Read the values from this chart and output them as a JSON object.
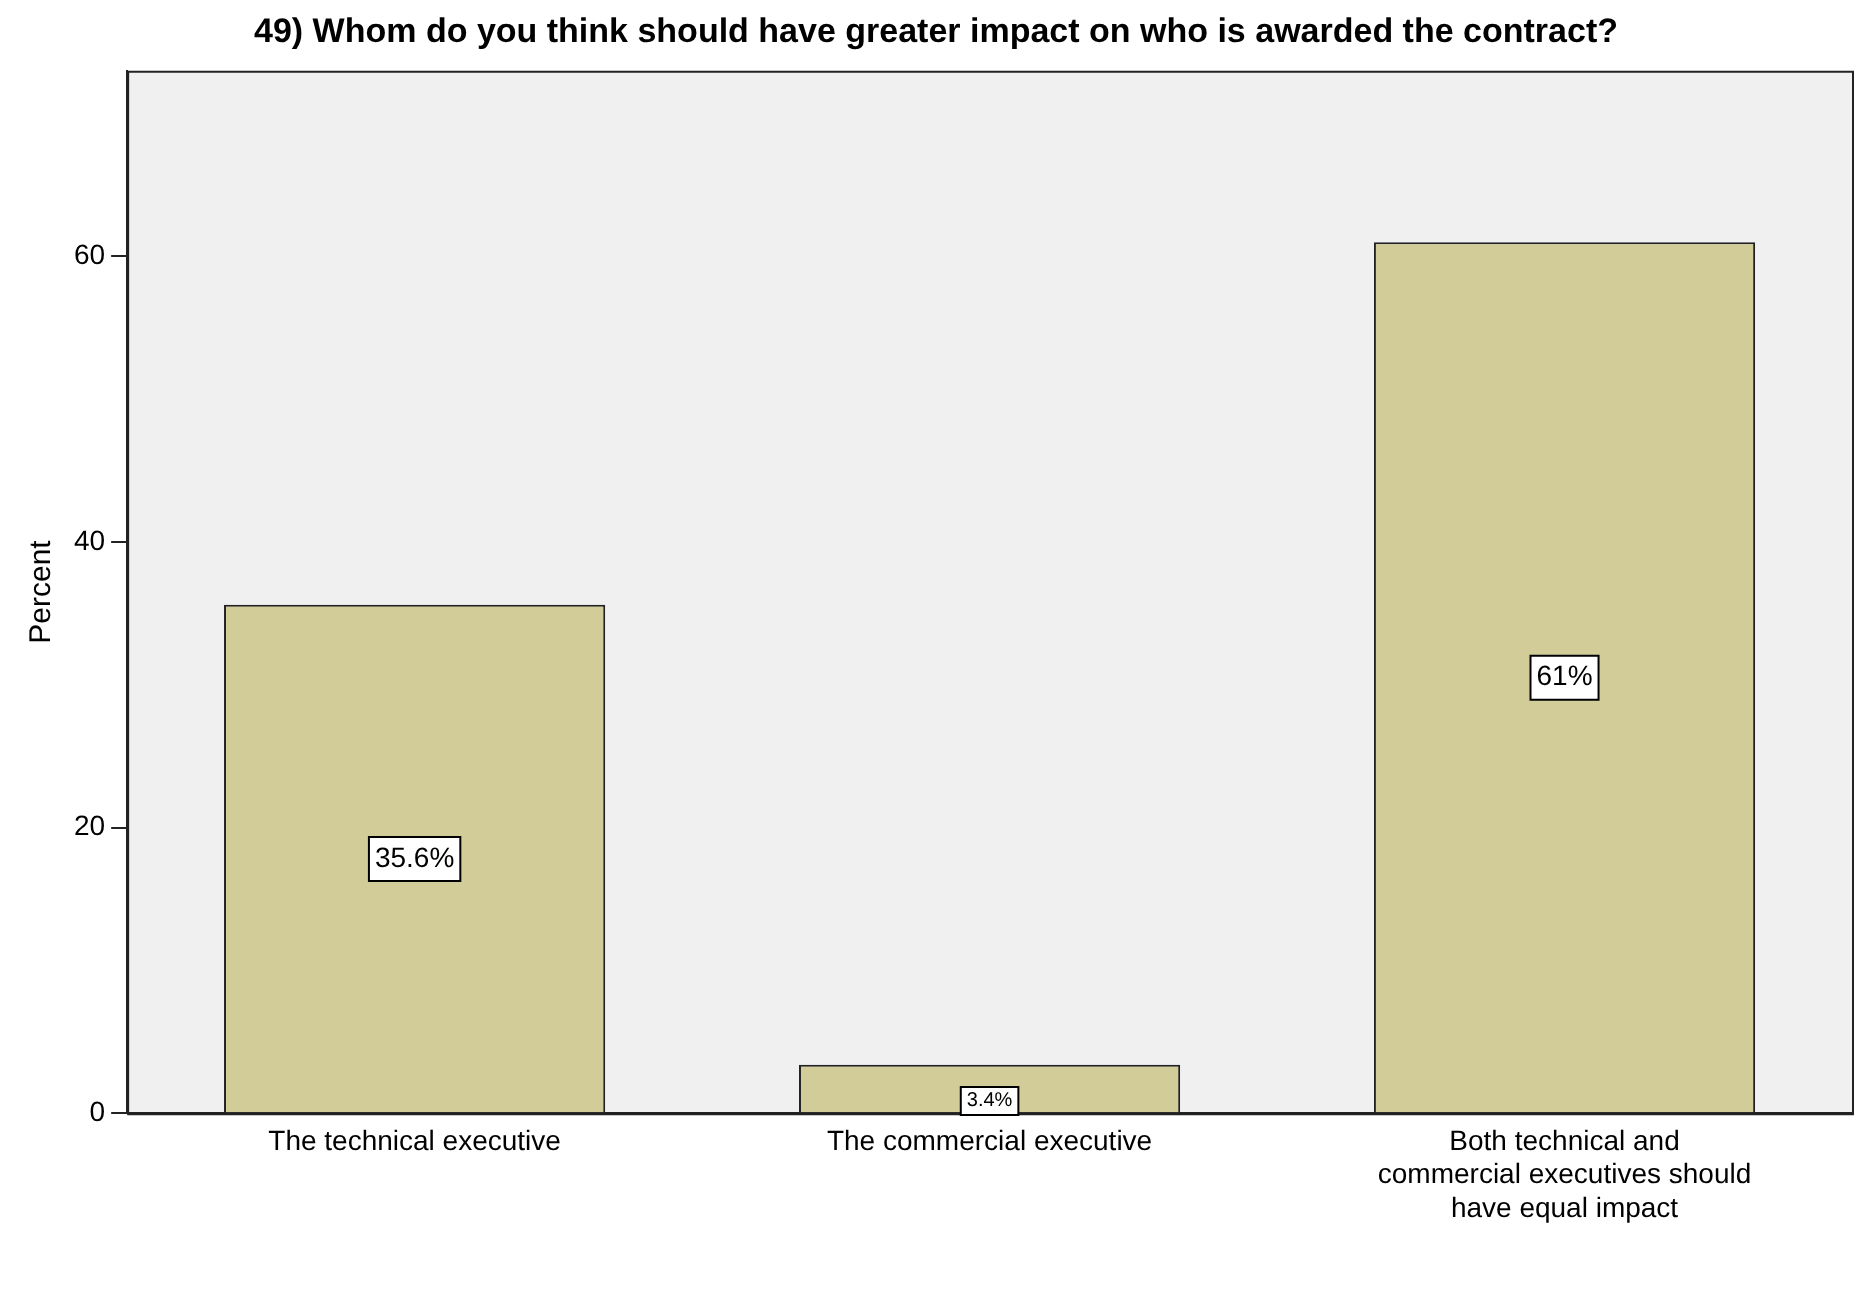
{
  "chart_data": {
    "type": "bar",
    "title": "49) Whom do you think should have greater impact on who is awarded the contract?",
    "ylabel": "Percent",
    "categories": [
      "The technical executive",
      "The commercial executive",
      "Both technical and commercial executives should have equal impact"
    ],
    "values": [
      35.6,
      3.4,
      61
    ],
    "value_labels": [
      "35.6%",
      "3.4%",
      "61%"
    ],
    "color": "#d2cc98",
    "ylim": [
      0,
      73
    ],
    "yticks": [
      0,
      20,
      40,
      60
    ],
    "grid": false,
    "legend": false
  }
}
